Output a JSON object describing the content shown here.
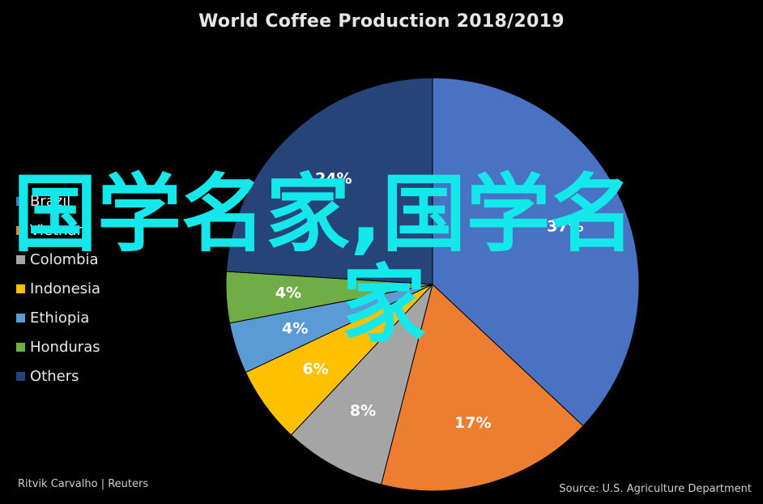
{
  "chart_data": {
    "type": "pie",
    "title": "World Coffee Production 2018/2019",
    "categories": [
      "Brazil",
      "Vietnam",
      "Colombia",
      "Indonesia",
      "Ethiopia",
      "Honduras",
      "Others"
    ],
    "values": [
      37,
      17,
      8,
      6,
      4,
      4,
      24
    ],
    "labels": [
      "37%",
      "17%",
      "8%",
      "6%",
      "4%",
      "4%",
      "24%"
    ],
    "colors": [
      "#4a72c2",
      "#ed7d31",
      "#a5a5a5",
      "#ffc000",
      "#5b9bd5",
      "#70ad47",
      "#264478"
    ],
    "legend_position": "left"
  },
  "legend": {
    "items": [
      {
        "label": "Brazil",
        "color": "#4a72c2"
      },
      {
        "label": "Vietnam",
        "color": "#ed7d31"
      },
      {
        "label": "Colombia",
        "color": "#a5a5a5"
      },
      {
        "label": "Indonesia",
        "color": "#ffc000"
      },
      {
        "label": "Ethiopia",
        "color": "#5b9bd5"
      },
      {
        "label": "Honduras",
        "color": "#70ad47"
      },
      {
        "label": "Others",
        "color": "#264478"
      }
    ]
  },
  "footer": {
    "credit": "Ritvik Carvalho | Reuters",
    "source": "Source: U.S. Agriculture Department"
  },
  "watermark": {
    "line1": "国学名家,国学名",
    "line2": "家"
  }
}
